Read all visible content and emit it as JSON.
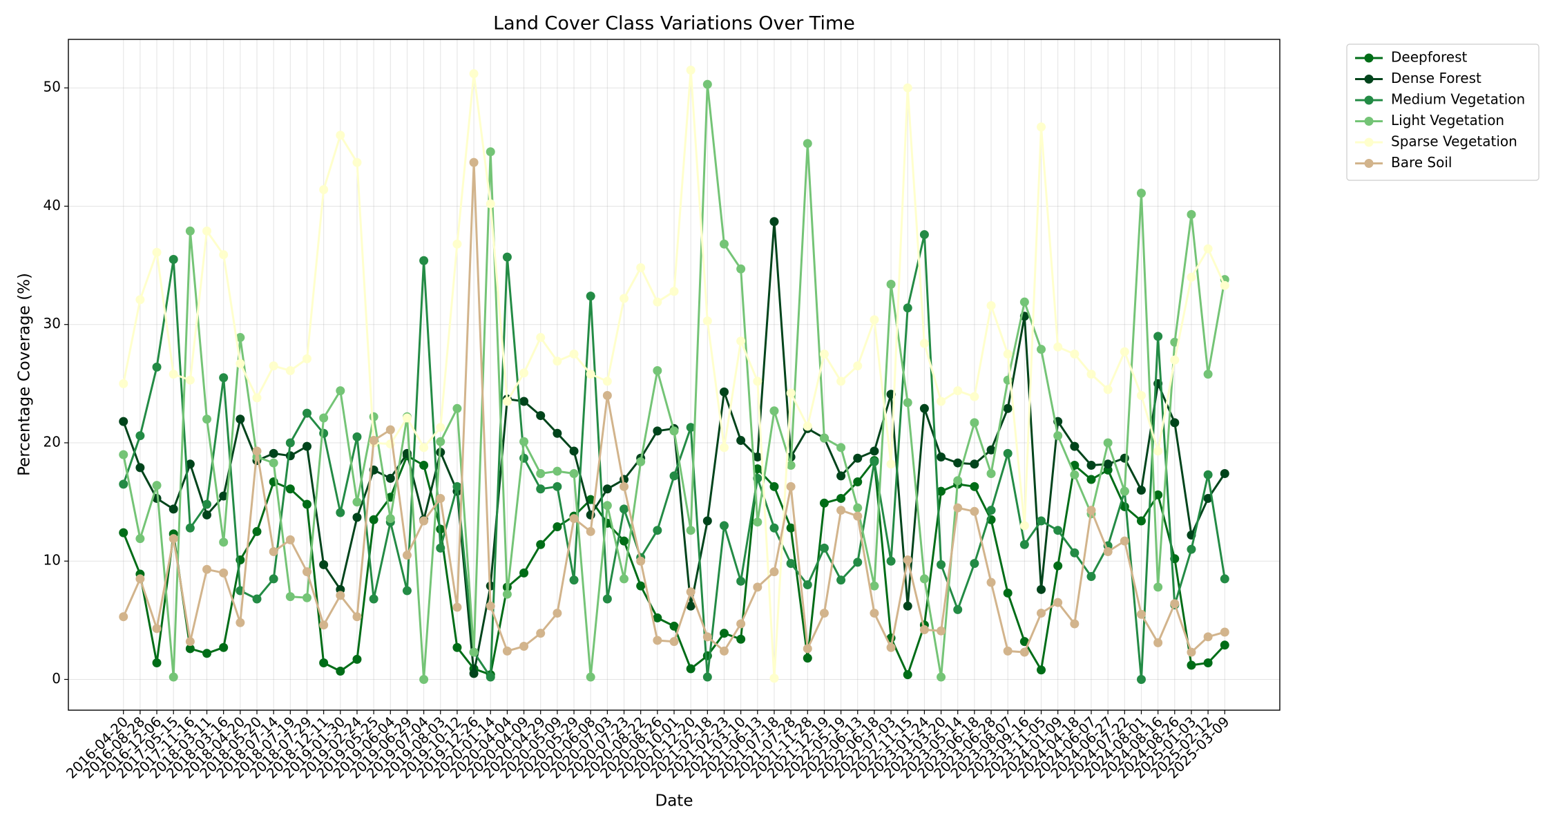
{
  "chart_data": {
    "type": "line",
    "title": "Land Cover Class Variations Over Time",
    "x_label": "Date",
    "y_label": "Percentage Coverage (%)",
    "categories": [
      "2016-04-20",
      "2016-08-28",
      "2016-12-06",
      "2017-05-15",
      "2017-11-16",
      "2018-03-11",
      "2018-03-16",
      "2018-04-20",
      "2018-05-20",
      "2018-07-14",
      "2018-07-19",
      "2018-07-29",
      "2018-12-11",
      "2019-01-30",
      "2019-02-24",
      "2019-05-25",
      "2019-06-04",
      "2019-06-29",
      "2019-07-04",
      "2019-08-03",
      "2019-10-12",
      "2019-12-26",
      "2020-01-14",
      "2020-04-04",
      "2020-04-09",
      "2020-04-29",
      "2020-05-09",
      "2020-05-29",
      "2020-06-08",
      "2020-07-03",
      "2020-07-23",
      "2020-08-22",
      "2020-08-26",
      "2020-10-01",
      "2020-12-20",
      "2021-02-18",
      "2021-02-23",
      "2021-03-10",
      "2021-06-13",
      "2021-07-18",
      "2021-07-28",
      "2021-11-28",
      "2021-12-19",
      "2022-05-19",
      "2022-06-13",
      "2022-06-18",
      "2022-07-03",
      "2022-11-15",
      "2023-01-24",
      "2023-03-20",
      "2023-05-14",
      "2023-06-18",
      "2023-06-28",
      "2023-08-07",
      "2023-09-16",
      "2023-11-05",
      "2024-01-09",
      "2024-04-18",
      "2024-06-07",
      "2024-06-27",
      "2024-07-22",
      "2024-08-01",
      "2024-08-16",
      "2024-08-26",
      "2025-01-03",
      "2025-02-12",
      "2025-03-09"
    ],
    "series": [
      {
        "name": "Deepforest",
        "color": "#006d17",
        "values": [
          12.4,
          8.9,
          1.4,
          12.3,
          2.6,
          2.2,
          2.7,
          10.1,
          12.5,
          16.7,
          16.1,
          14.8,
          1.4,
          0.7,
          1.7,
          13.5,
          15.4,
          18.9,
          18.1,
          12.7,
          2.7,
          0.9,
          0.4,
          7.8,
          9.0,
          11.4,
          12.9,
          13.8,
          15.2,
          13.2,
          11.7,
          7.9,
          5.2,
          4.5,
          0.9,
          2.0,
          3.9,
          3.4,
          17.8,
          16.3,
          12.8,
          1.8,
          14.9,
          15.3,
          16.7,
          18.5,
          3.5,
          0.4,
          4.6,
          15.9,
          16.5,
          16.3,
          13.5,
          7.3,
          3.2,
          0.8,
          9.6,
          18.1,
          16.9,
          17.7,
          14.6,
          13.4,
          15.6,
          10.2,
          1.2,
          1.4,
          2.9
        ]
      },
      {
        "name": "Dense Forest",
        "color": "#00441b",
        "values": [
          21.8,
          17.9,
          15.3,
          14.4,
          18.2,
          13.9,
          15.5,
          22.0,
          18.5,
          19.1,
          18.9,
          19.7,
          9.7,
          7.6,
          13.7,
          17.7,
          17.0,
          19.1,
          13.5,
          19.2,
          15.9,
          0.5,
          7.9,
          23.7,
          23.5,
          22.3,
          20.8,
          19.3,
          13.9,
          16.1,
          16.9,
          18.7,
          21.0,
          21.2,
          6.2,
          13.4,
          24.3,
          20.2,
          18.8,
          38.7,
          18.8,
          21.2,
          20.4,
          17.2,
          18.7,
          19.3,
          24.1,
          6.2,
          22.9,
          18.8,
          18.3,
          18.2,
          19.4,
          22.9,
          30.7,
          7.6,
          21.8,
          19.7,
          18.1,
          18.2,
          18.7,
          16.0,
          25.0,
          21.7,
          12.2,
          15.3,
          17.4
        ]
      },
      {
        "name": "Medium Vegetation",
        "color": "#238b45",
        "values": [
          16.5,
          20.6,
          26.4,
          35.5,
          12.8,
          14.8,
          25.5,
          7.5,
          6.8,
          8.5,
          20.0,
          22.5,
          20.8,
          14.1,
          20.5,
          6.8,
          13.3,
          7.5,
          35.4,
          11.1,
          16.3,
          2.3,
          0.2,
          35.7,
          18.7,
          16.1,
          16.3,
          8.4,
          32.4,
          6.8,
          14.4,
          10.3,
          12.6,
          17.2,
          21.3,
          0.2,
          13.0,
          8.3,
          17.0,
          12.8,
          9.8,
          8.0,
          11.1,
          8.4,
          9.9,
          18.4,
          10.0,
          31.4,
          37.6,
          9.7,
          5.9,
          9.8,
          14.3,
          19.1,
          11.4,
          13.4,
          12.6,
          10.7,
          8.7,
          11.3,
          15.9,
          0.0,
          29.0,
          6.3,
          11.0,
          17.3,
          8.5
        ]
      },
      {
        "name": "Light Vegetation",
        "color": "#74c476",
        "values": [
          19.0,
          11.9,
          16.4,
          0.2,
          37.9,
          22.0,
          11.6,
          28.9,
          18.8,
          18.3,
          7.0,
          6.9,
          22.1,
          24.4,
          15.0,
          22.2,
          13.6,
          22.2,
          0.0,
          20.1,
          22.9,
          2.3,
          44.6,
          7.2,
          20.1,
          17.4,
          17.6,
          17.4,
          0.2,
          14.7,
          8.5,
          18.4,
          26.1,
          21.0,
          12.6,
          50.3,
          36.8,
          34.7,
          13.3,
          22.7,
          18.1,
          45.3,
          20.4,
          19.6,
          14.5,
          7.9,
          33.4,
          23.4,
          8.5,
          0.2,
          16.8,
          21.7,
          17.4,
          25.3,
          31.9,
          27.9,
          20.6,
          17.3,
          14.0,
          20.0,
          15.9,
          41.1,
          7.8,
          28.5,
          39.3,
          25.8,
          33.8
        ]
      },
      {
        "name": "Sparse Vegetation",
        "color": "#ffffcc",
        "values": [
          25.0,
          32.1,
          36.1,
          25.8,
          25.3,
          37.9,
          35.9,
          26.7,
          23.8,
          26.5,
          26.1,
          27.1,
          41.4,
          46.0,
          43.7,
          20.0,
          19.9,
          22.1,
          19.6,
          21.3,
          36.8,
          51.2,
          40.2,
          23.5,
          25.9,
          28.9,
          26.9,
          27.5,
          25.8,
          25.2,
          32.2,
          34.8,
          31.9,
          32.8,
          51.5,
          30.3,
          19.6,
          28.6,
          25.2,
          0.1,
          24.2,
          21.4,
          27.5,
          25.2,
          26.5,
          30.4,
          18.2,
          50.0,
          28.4,
          23.5,
          24.4,
          23.9,
          31.6,
          27.5,
          13.0,
          46.7,
          28.1,
          27.5,
          25.8,
          24.5,
          27.7,
          24.0,
          19.3,
          27.0,
          34.0,
          36.4,
          33.3
        ]
      },
      {
        "name": "Bare Soil",
        "color": "#d2b48c",
        "values": [
          5.3,
          8.5,
          4.3,
          11.9,
          3.2,
          9.3,
          9.0,
          4.8,
          19.3,
          10.8,
          11.8,
          9.1,
          4.6,
          7.1,
          5.3,
          20.2,
          21.1,
          10.5,
          13.4,
          15.3,
          6.1,
          43.7,
          6.2,
          2.4,
          2.8,
          3.9,
          5.6,
          13.6,
          12.5,
          24.0,
          16.3,
          10.0,
          3.3,
          3.2,
          7.4,
          3.6,
          2.4,
          4.7,
          7.8,
          9.1,
          16.3,
          2.6,
          5.6,
          14.3,
          13.8,
          5.6,
          2.7,
          10.1,
          4.2,
          4.1,
          14.5,
          14.2,
          8.2,
          2.4,
          2.3,
          5.6,
          6.5,
          4.7,
          14.3,
          10.8,
          11.7,
          5.5,
          3.1,
          6.4,
          2.3,
          3.6,
          4.0
        ]
      }
    ],
    "ylim": [
      -2.6,
      54.1
    ],
    "yticks": [
      0,
      10,
      20,
      30,
      40,
      50
    ],
    "grid": true,
    "legend": "outside-upper-right"
  }
}
